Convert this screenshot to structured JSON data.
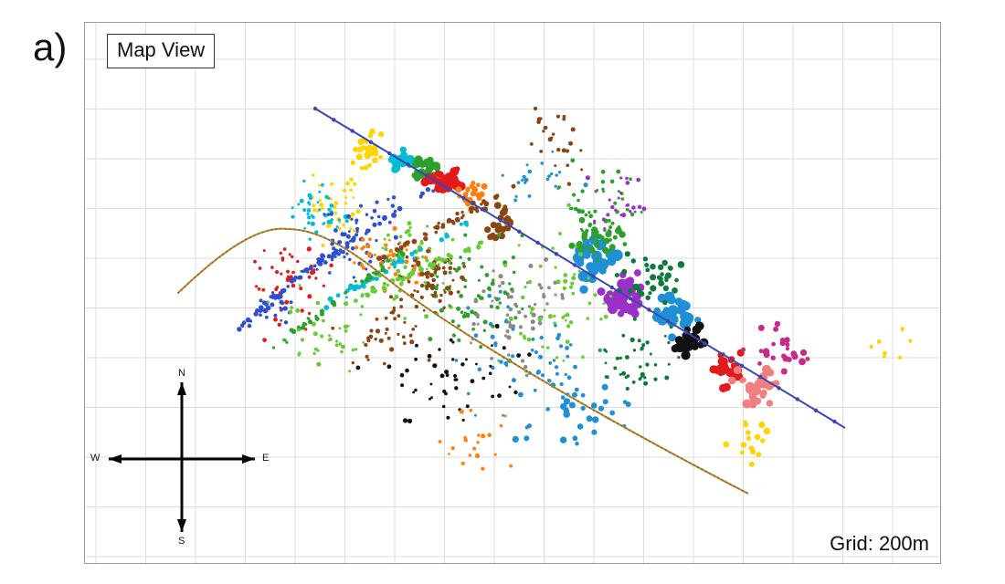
{
  "panel_label": "a)",
  "view_title": "Map View",
  "grid_note": "Grid: 200m",
  "compass": {
    "north": "N",
    "south": "S",
    "east": "E",
    "west": "W"
  },
  "colors": {
    "well_blue": "#3a46b4",
    "well_gold": "#b8862e",
    "event_palette": [
      "#1f8fd6",
      "#ffd400",
      "#e31a1c",
      "#2ca02c",
      "#8b4513",
      "#ff7f0e",
      "#9b30c9",
      "#00bcd4",
      "#111111",
      "#8a8a8a",
      "#f08080",
      "#66cc33",
      "#2f4fd0",
      "#0b7a3a",
      "#c72b8a",
      "#00a090"
    ]
  }
}
